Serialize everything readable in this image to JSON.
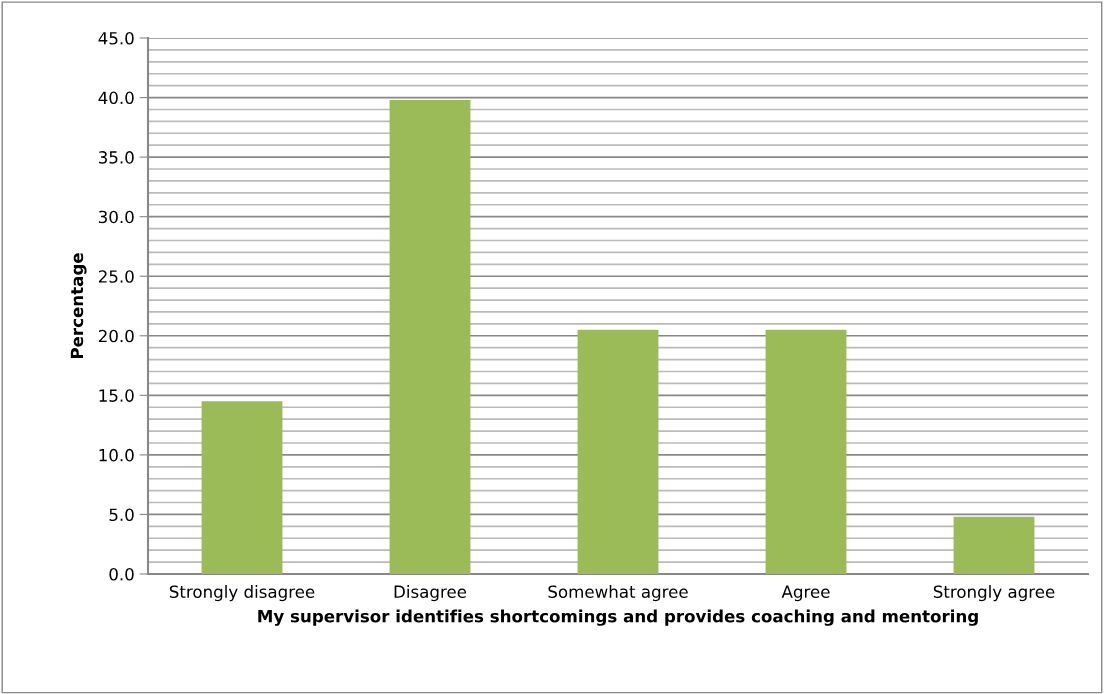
{
  "chart_data": {
    "type": "bar",
    "xlabel": "My supervisor identifies shortcomings and provides coaching and mentoring",
    "ylabel": "Percentage",
    "categories": [
      "Strongly disagree",
      "Disagree",
      "Somewhat agree",
      "Agree",
      "Strongly agree"
    ],
    "values": [
      14.5,
      39.8,
      20.5,
      20.5,
      4.8
    ],
    "color": "#9bbb59",
    "ylim": [
      0,
      45
    ],
    "yticks": [
      {
        "value": 0,
        "label": "0.0"
      },
      {
        "value": 1,
        "label": null
      },
      {
        "value": 2,
        "label": null
      },
      {
        "value": 3,
        "label": null
      },
      {
        "value": 4,
        "label": null
      },
      {
        "value": 5,
        "label": "5.0"
      },
      {
        "value": 6,
        "label": null
      },
      {
        "value": 7,
        "label": null
      },
      {
        "value": 8,
        "label": null
      },
      {
        "value": 9,
        "label": null
      },
      {
        "value": 10,
        "label": "10.0"
      },
      {
        "value": 11,
        "label": null
      },
      {
        "value": 12,
        "label": null
      },
      {
        "value": 13,
        "label": null
      },
      {
        "value": 14,
        "label": null
      },
      {
        "value": 15,
        "label": "15.0"
      },
      {
        "value": 16,
        "label": null
      },
      {
        "value": 17,
        "label": null
      },
      {
        "value": 18,
        "label": null
      },
      {
        "value": 19,
        "label": null
      },
      {
        "value": 20,
        "label": "20.0"
      },
      {
        "value": 21,
        "label": null
      },
      {
        "value": 22,
        "label": null
      },
      {
        "value": 23,
        "label": null
      },
      {
        "value": 24,
        "label": null
      },
      {
        "value": 25,
        "label": "25.0"
      },
      {
        "value": 26,
        "label": null
      },
      {
        "value": 27,
        "label": null
      },
      {
        "value": 28,
        "label": null
      },
      {
        "value": 29,
        "label": null
      },
      {
        "value": 30,
        "label": "30.0"
      },
      {
        "value": 31,
        "label": null
      },
      {
        "value": 32,
        "label": null
      },
      {
        "value": 33,
        "label": null
      },
      {
        "value": 34,
        "label": null
      },
      {
        "value": 35,
        "label": "35.0"
      },
      {
        "value": 36,
        "label": null
      },
      {
        "value": 37,
        "label": null
      },
      {
        "value": 38,
        "label": null
      },
      {
        "value": 39,
        "label": null
      },
      {
        "value": 40,
        "label": "40.0"
      },
      {
        "value": 41,
        "label": null
      },
      {
        "value": 42,
        "label": null
      },
      {
        "value": 43,
        "label": null
      },
      {
        "value": 44,
        "label": null
      },
      {
        "value": 45,
        "label": "45.0"
      }
    ],
    "grid": "y"
  }
}
